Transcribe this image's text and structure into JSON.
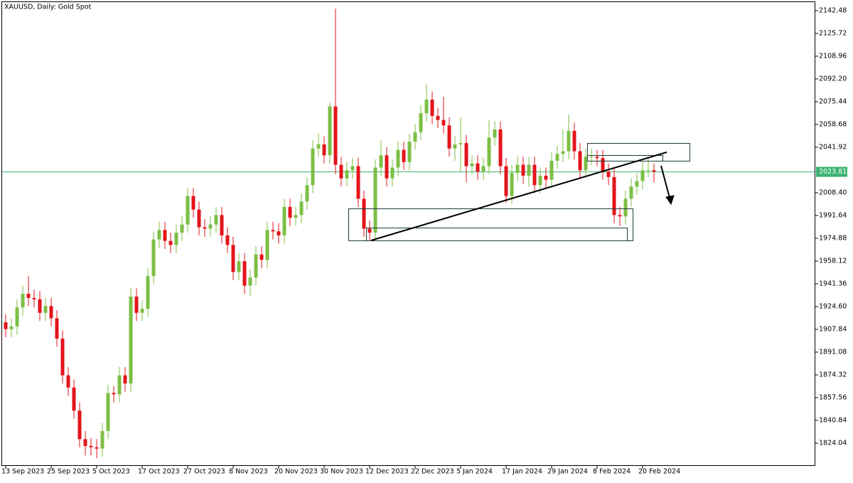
{
  "chart_data": {
    "type": "candlestick",
    "title": "XAUUSD, Daily:  Gold Spot",
    "categories": [
      "13 Sep 2023",
      null,
      null,
      null,
      null,
      null,
      null,
      null,
      "25 Sep 2023",
      null,
      null,
      null,
      null,
      null,
      null,
      null,
      "5 Oct 2023",
      null,
      null,
      null,
      null,
      null,
      null,
      null,
      "17 Oct 2023",
      null,
      null,
      null,
      null,
      null,
      null,
      null,
      "27 Oct 2023",
      null,
      null,
      null,
      null,
      null,
      null,
      null,
      "8 Nov 2023",
      null,
      null,
      null,
      null,
      null,
      null,
      null,
      "20 Nov 2023",
      null,
      null,
      null,
      null,
      null,
      null,
      null,
      "30 Nov 2023",
      null,
      null,
      null,
      null,
      null,
      null,
      null,
      "12 Dec 2023",
      null,
      null,
      null,
      null,
      null,
      null,
      null,
      "22 Dec 2023",
      null,
      null,
      null,
      null,
      null,
      null,
      null,
      "5 Jan 2024",
      null,
      null,
      null,
      null,
      null,
      null,
      null,
      "17 Jan 2024",
      null,
      null,
      null,
      null,
      null,
      null,
      null,
      "29 Jan 2024",
      null,
      null,
      null,
      null,
      null,
      null,
      null,
      "8 Feb 2024",
      null,
      null,
      null,
      null,
      null,
      null,
      null,
      "20 Feb 2024",
      null,
      null
    ],
    "open": [
      1913,
      1908,
      1910,
      1924,
      1934,
      1931,
      1930,
      1920,
      1925,
      1916,
      1901,
      1874,
      1865,
      1848,
      1827,
      1822,
      1821,
      1820,
      1833,
      1861,
      1860,
      1874,
      1868,
      1932,
      1920,
      1923,
      1947,
      1974,
      1981,
      1973,
      1970,
      1979,
      1985,
      2006,
      1996,
      1983,
      1982,
      1985,
      1992,
      1977,
      1970,
      1950,
      1958,
      1940,
      1946,
      1963,
      1959,
      1981,
      1980,
      1977,
      1998,
      1990,
      1992,
      2002,
      2014,
      2041,
      2044,
      2036,
      2072,
      2029,
      2019,
      2025,
      2028,
      2004,
      1982,
      1979,
      2027,
      2036,
      2019,
      2027,
      2040,
      2031,
      2046,
      2053,
      2067,
      2077,
      2065,
      2062,
      2058,
      2041,
      2044,
      2045,
      2028,
      2030,
      2024,
      2028,
      2049,
      2055,
      2028,
      2006,
      2023,
      2029,
      2021,
      2029,
      2014,
      2021,
      2018,
      2032,
      2037,
      2039,
      2054,
      2039,
      2025,
      2035,
      2035,
      2034,
      2024,
      2020,
      1992,
      1991,
      2004,
      2013,
      2017,
      2025,
      2025
    ],
    "high": [
      1919,
      1916,
      1930,
      1940,
      1947,
      1937,
      1936,
      1931,
      1931,
      1922,
      1907,
      1880,
      1871,
      1854,
      1833,
      1828,
      1827,
      1839,
      1867,
      1866,
      1880,
      1880,
      1938,
      1938,
      1929,
      1953,
      1980,
      1987,
      1987,
      1979,
      1985,
      1991,
      2012,
      2012,
      2002,
      1989,
      1991,
      1998,
      1998,
      1983,
      1976,
      1964,
      1964,
      1952,
      1969,
      1969,
      1987,
      1987,
      1986,
      2004,
      2004,
      1998,
      2008,
      2020,
      2047,
      2052,
      2050,
      2075,
      2144,
      2035,
      2031,
      2034,
      2034,
      2010,
      1988,
      2033,
      2047,
      2042,
      2033,
      2046,
      2046,
      2052,
      2059,
      2073,
      2088,
      2083,
      2071,
      2079,
      2064,
      2050,
      2064,
      2051,
      2036,
      2036,
      2034,
      2062,
      2061,
      2061,
      2034,
      2029,
      2035,
      2035,
      2035,
      2035,
      2027,
      2027,
      2038,
      2043,
      2055,
      2066,
      2060,
      2045,
      2041,
      2041,
      2040,
      2040,
      2030,
      2026,
      1998,
      2010,
      2019,
      2023,
      2031,
      2035,
      2030
    ],
    "low": [
      1902,
      1902,
      1904,
      1918,
      1925,
      1924,
      1914,
      1914,
      1910,
      1895,
      1868,
      1859,
      1842,
      1821,
      1815,
      1815,
      1813,
      1814,
      1827,
      1854,
      1854,
      1862,
      1862,
      1914,
      1914,
      1917,
      1941,
      1968,
      1967,
      1964,
      1964,
      1973,
      1979,
      1990,
      1977,
      1976,
      1976,
      1979,
      1971,
      1964,
      1944,
      1944,
      1934,
      1932,
      1940,
      1953,
      1953,
      1974,
      1971,
      1971,
      1984,
      1984,
      1986,
      1996,
      2008,
      2035,
      2030,
      2030,
      2022,
      2013,
      2013,
      2019,
      1998,
      1976,
      1973,
      1973,
      2021,
      2013,
      2013,
      2021,
      2025,
      2025,
      2040,
      2047,
      2061,
      2059,
      2056,
      2052,
      2035,
      2032,
      2024,
      2016,
      2022,
      2018,
      2018,
      2022,
      2043,
      2022,
      2001,
      2000,
      2017,
      2015,
      2013,
      2008,
      2008,
      2012,
      2012,
      2026,
      2031,
      2033,
      2033,
      2019,
      2019,
      2029,
      2028,
      2018,
      2014,
      1986,
      1984,
      1985,
      1998,
      2007,
      2011,
      2020,
      2016
    ],
    "close": [
      1908,
      1910,
      1924,
      1934,
      1931,
      1930,
      1920,
      1925,
      1916,
      1901,
      1874,
      1865,
      1848,
      1827,
      1822,
      1821,
      1820,
      1833,
      1861,
      1860,
      1874,
      1868,
      1932,
      1920,
      1923,
      1947,
      1974,
      1981,
      1973,
      1970,
      1979,
      1985,
      2006,
      1996,
      1983,
      1982,
      1985,
      1992,
      1977,
      1970,
      1950,
      1958,
      1940,
      1946,
      1963,
      1959,
      1981,
      1980,
      1977,
      1998,
      1990,
      1992,
      2002,
      2014,
      2041,
      2044,
      2036,
      2072,
      2029,
      2019,
      2025,
      2028,
      2004,
      1982,
      1979,
      2027,
      2036,
      2019,
      2027,
      2040,
      2031,
      2046,
      2053,
      2067,
      2077,
      2065,
      2062,
      2058,
      2041,
      2044,
      2045,
      2028,
      2030,
      2024,
      2028,
      2049,
      2055,
      2028,
      2006,
      2023,
      2029,
      2021,
      2029,
      2014,
      2021,
      2018,
      2032,
      2037,
      2039,
      2054,
      2039,
      2025,
      2035,
      2035,
      2034,
      2024,
      2020,
      1992,
      1991,
      2004,
      2013,
      2017,
      2025,
      2025,
      2024
    ],
    "up_color": "#7cbf45",
    "down_color": "#e3141b",
    "current_price": 2023.81,
    "current_price_color": "#3cb371",
    "ylim": [
      1807.28,
      2149.29
    ],
    "yticks": [
      1824.04,
      1840.84,
      1857.56,
      1874.32,
      1891.08,
      1907.84,
      {
        "value": 1924.6,
        "label": "1924.60"
      },
      1941.36,
      1958.12,
      1974.88,
      1991.64,
      {
        "value": 2008.4,
        "label": "2008.40"
      },
      2041.92,
      2058.68,
      2075.44,
      {
        "value": 2092.2,
        "label": "2092.20"
      },
      2108.96,
      2125.72,
      2142.48
    ]
  }
}
